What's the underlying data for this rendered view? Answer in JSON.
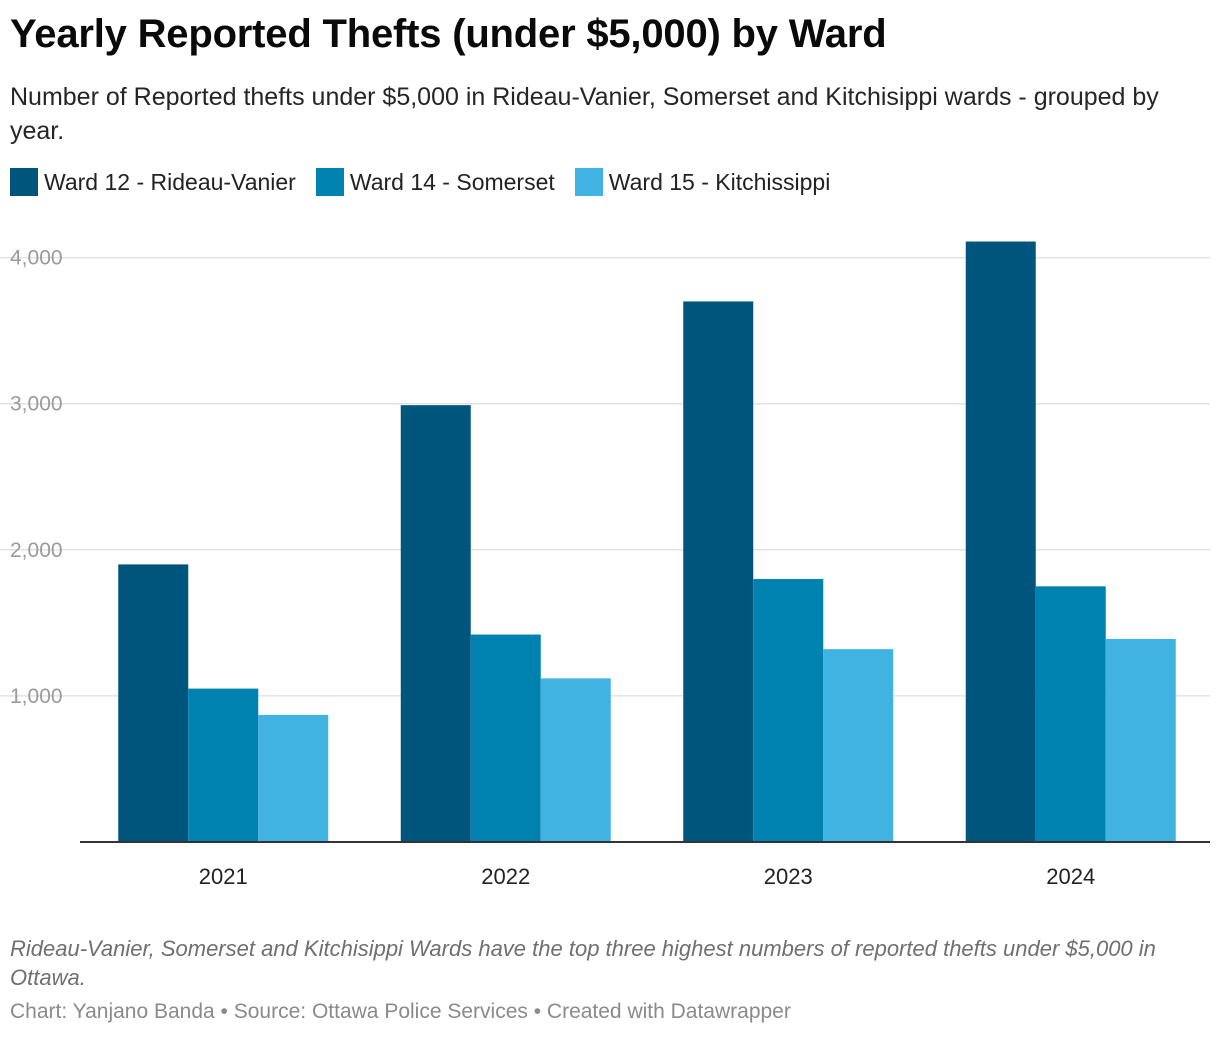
{
  "header": {
    "title": "Yearly Reported Thefts (under $5,000) by Ward",
    "subtitle": "Number of Reported thefts under $5,000 in Rideau-Vanier, Somerset and Kitchisippi wards - grouped by year."
  },
  "colors": {
    "ward12": "#00557c",
    "ward14": "#0082b0",
    "ward15": "#41b3e2",
    "grid": "#e2e2e2",
    "axis": "#333333"
  },
  "chart_data": {
    "type": "bar",
    "categories": [
      "2021",
      "2022",
      "2023",
      "2024"
    ],
    "series": [
      {
        "name": "Ward 12 - Rideau-Vanier",
        "values": [
          1900,
          2990,
          3700,
          4110
        ]
      },
      {
        "name": "Ward 14 - Somerset",
        "values": [
          1050,
          1420,
          1800,
          1750
        ]
      },
      {
        "name": "Ward 15 - Kitchissippi",
        "values": [
          870,
          1120,
          1320,
          1390
        ]
      }
    ],
    "y_ticks": [
      1000,
      2000,
      3000,
      4000
    ],
    "y_tick_labels": [
      "1,000",
      "2,000",
      "3,000",
      "4,000"
    ],
    "ylim": [
      0,
      4200
    ],
    "grid": true,
    "legend": "top-left"
  },
  "note": "Rideau-Vanier, Somerset and Kitchisippi Wards have the top three highest numbers of reported thefts under $5,000 in Ottawa.",
  "footer": {
    "chart": "Chart: Yanjano Banda",
    "source": "Source: Ottawa Police Services",
    "created": "Created with Datawrapper",
    "separator": " • "
  }
}
